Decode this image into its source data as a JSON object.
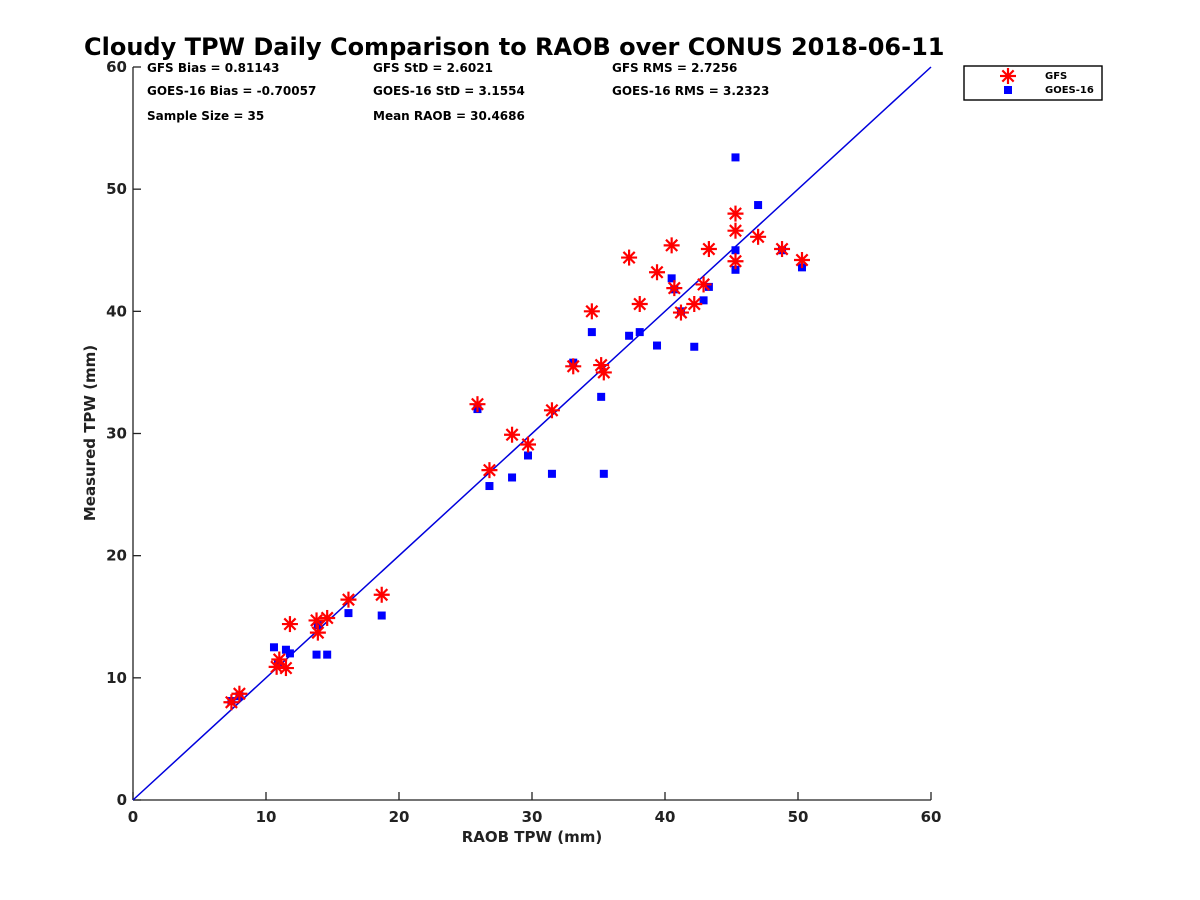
{
  "chart_data": {
    "type": "scatter",
    "title": "Cloudy TPW Daily Comparison to RAOB over CONUS 2018-06-11",
    "xlabel": "RAOB TPW (mm)",
    "ylabel": "Measured TPW (mm)",
    "xlim": [
      0,
      60
    ],
    "ylim": [
      0,
      60
    ],
    "xticks": [
      "0",
      "10",
      "20",
      "30",
      "40",
      "50",
      "60"
    ],
    "yticks": [
      "0",
      "10",
      "20",
      "30",
      "40",
      "50",
      "60"
    ],
    "legend_position": "top-right outside",
    "reference_line": {
      "name": "1:1 line",
      "color": "#0000dd",
      "from": [
        0,
        0
      ],
      "to": [
        60,
        60
      ]
    },
    "stats": [
      [
        "GFS Bias = 0.81143",
        "GFS StD = 2.6021",
        "GFS RMS = 2.7256"
      ],
      [
        "GOES-16 Bias = -0.70057",
        "GOES-16 StD = 3.1554",
        "GOES-16 RMS = 3.2323"
      ],
      [
        "Sample Size = 35",
        "Mean RAOB = 30.4686",
        ""
      ]
    ],
    "series": [
      {
        "name": "GFS",
        "marker": "asterisk",
        "color": "#ff0000",
        "points": [
          [
            7.4,
            8.0
          ],
          [
            8.0,
            8.7
          ],
          [
            10.8,
            10.9
          ],
          [
            11.0,
            11.5
          ],
          [
            11.5,
            10.8
          ],
          [
            11.8,
            14.4
          ],
          [
            13.8,
            14.7
          ],
          [
            13.9,
            13.7
          ],
          [
            14.6,
            14.9
          ],
          [
            16.2,
            16.4
          ],
          [
            18.7,
            16.8
          ],
          [
            25.9,
            32.4
          ],
          [
            26.8,
            27.0
          ],
          [
            28.5,
            29.9
          ],
          [
            29.7,
            29.1
          ],
          [
            31.5,
            31.9
          ],
          [
            33.1,
            35.5
          ],
          [
            34.5,
            40.0
          ],
          [
            35.2,
            35.6
          ],
          [
            35.4,
            35.0
          ],
          [
            37.3,
            44.4
          ],
          [
            38.1,
            40.6
          ],
          [
            39.4,
            43.2
          ],
          [
            40.5,
            45.4
          ],
          [
            40.7,
            41.9
          ],
          [
            41.2,
            39.9
          ],
          [
            42.2,
            40.6
          ],
          [
            42.9,
            42.2
          ],
          [
            43.3,
            45.1
          ],
          [
            45.3,
            48.0
          ],
          [
            45.3,
            46.6
          ],
          [
            45.3,
            44.1
          ],
          [
            47.0,
            46.1
          ],
          [
            48.8,
            45.1
          ],
          [
            50.3,
            44.2
          ]
        ]
      },
      {
        "name": "GOES-16",
        "marker": "square",
        "color": "#0000ff",
        "points": [
          [
            7.4,
            8.1
          ],
          [
            8.0,
            8.5
          ],
          [
            10.6,
            12.5
          ],
          [
            10.9,
            11.1
          ],
          [
            11.5,
            12.3
          ],
          [
            11.8,
            12.0
          ],
          [
            13.8,
            11.9
          ],
          [
            13.9,
            14.3
          ],
          [
            14.6,
            11.9
          ],
          [
            16.2,
            15.3
          ],
          [
            18.7,
            15.1
          ],
          [
            25.9,
            32.0
          ],
          [
            26.8,
            25.7
          ],
          [
            28.5,
            26.4
          ],
          [
            29.7,
            28.2
          ],
          [
            31.5,
            26.7
          ],
          [
            33.1,
            35.8
          ],
          [
            34.5,
            38.3
          ],
          [
            35.2,
            33.0
          ],
          [
            35.4,
            26.7
          ],
          [
            37.3,
            38.0
          ],
          [
            38.1,
            38.3
          ],
          [
            39.4,
            37.2
          ],
          [
            40.5,
            42.7
          ],
          [
            40.7,
            41.8
          ],
          [
            41.2,
            40.0
          ],
          [
            42.2,
            37.1
          ],
          [
            42.9,
            40.9
          ],
          [
            43.3,
            42.0
          ],
          [
            45.3,
            52.6
          ],
          [
            45.3,
            45.0
          ],
          [
            45.3,
            43.4
          ],
          [
            47.0,
            48.7
          ],
          [
            48.8,
            45.0
          ],
          [
            50.3,
            43.6
          ]
        ]
      }
    ]
  }
}
